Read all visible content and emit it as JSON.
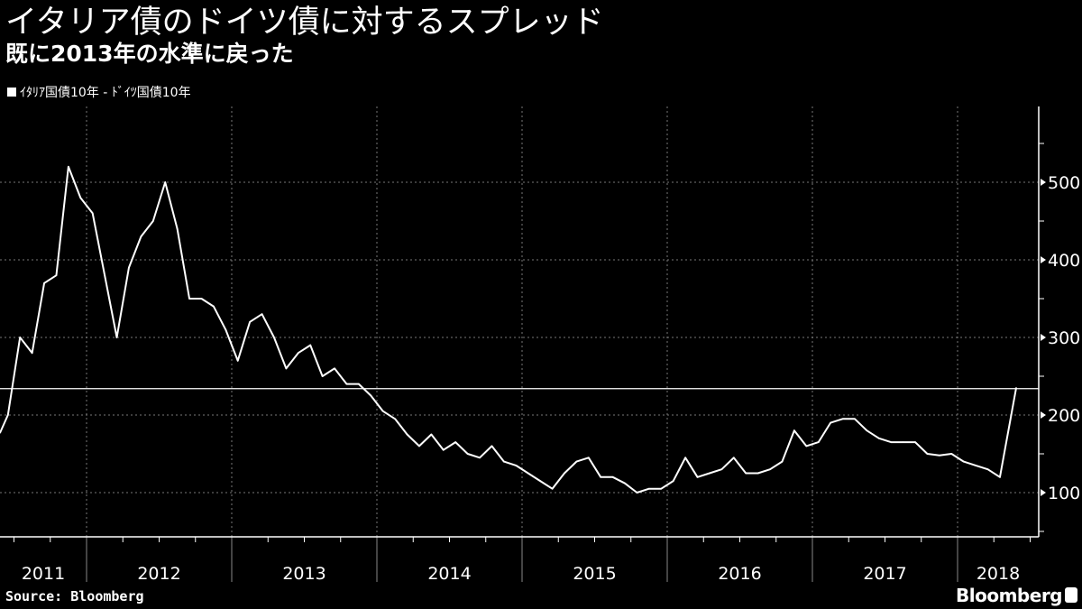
{
  "header": {
    "title": "イタリア債のドイツ債に対するスプレッド",
    "subtitle": "既に2013年の水準に戻った"
  },
  "footer": {
    "source": "Source: Bloomberg",
    "brand": "Bloomberg",
    "brand_icon": "bloomberg-chart-icon"
  },
  "colors": {
    "background": "#000000",
    "line": "#ffffff",
    "grid": "#888888"
  },
  "chart_data": {
    "type": "line",
    "title": "イタリア債のドイツ債に対するスプレッド",
    "subtitle": "既に2013年の水準に戻った",
    "legend": {
      "position": "top-left",
      "entries": [
        "ｲﾀﾘｱ国債10年 - ﾄﾞｲﾂ国債10年"
      ]
    },
    "y_axis": {
      "side": "right",
      "ylim": [
        50,
        580
      ],
      "ticks": [
        100,
        200,
        300,
        400,
        500
      ]
    },
    "x_axis": {
      "ticks": [
        "2011",
        "2012",
        "2013",
        "2014",
        "2015",
        "2016",
        "2017",
        "2018"
      ]
    },
    "grid": true,
    "reference_line": 234,
    "series": [
      {
        "name": "ｲﾀﾘｱ国債10年 - ﾄﾞｲﾂ国債10年",
        "x": [
          "2011-05",
          "2011-06",
          "2011-07",
          "2011-08",
          "2011-09",
          "2011-10",
          "2011-11",
          "2011-12",
          "2012-01",
          "2012-02",
          "2012-03",
          "2012-04",
          "2012-05",
          "2012-06",
          "2012-07",
          "2012-08",
          "2012-09",
          "2012-10",
          "2012-11",
          "2012-12",
          "2013-01",
          "2013-02",
          "2013-03",
          "2013-04",
          "2013-05",
          "2013-06",
          "2013-07",
          "2013-08",
          "2013-09",
          "2013-10",
          "2013-11",
          "2013-12",
          "2014-01",
          "2014-02",
          "2014-03",
          "2014-04",
          "2014-05",
          "2014-06",
          "2014-07",
          "2014-08",
          "2014-09",
          "2014-10",
          "2014-11",
          "2014-12",
          "2015-01",
          "2015-02",
          "2015-03",
          "2015-04",
          "2015-05",
          "2015-06",
          "2015-07",
          "2015-08",
          "2015-09",
          "2015-10",
          "2015-11",
          "2015-12",
          "2016-01",
          "2016-02",
          "2016-03",
          "2016-04",
          "2016-05",
          "2016-06",
          "2016-07",
          "2016-08",
          "2016-09",
          "2016-10",
          "2016-11",
          "2016-12",
          "2017-01",
          "2017-02",
          "2017-03",
          "2017-04",
          "2017-05",
          "2017-06",
          "2017-07",
          "2017-08",
          "2017-09",
          "2017-10",
          "2017-11",
          "2017-12",
          "2018-01",
          "2018-02",
          "2018-03",
          "2018-04",
          "2018-05"
        ],
        "values": [
          177,
          200,
          300,
          280,
          370,
          380,
          520,
          480,
          460,
          380,
          300,
          390,
          430,
          450,
          500,
          440,
          350,
          350,
          340,
          310,
          270,
          320,
          330,
          300,
          260,
          280,
          290,
          250,
          260,
          240,
          240,
          225,
          205,
          195,
          175,
          160,
          175,
          155,
          165,
          150,
          145,
          160,
          140,
          135,
          125,
          115,
          105,
          125,
          140,
          145,
          120,
          120,
          112,
          100,
          105,
          105,
          115,
          145,
          120,
          125,
          130,
          145,
          125,
          125,
          130,
          140,
          180,
          160,
          165,
          190,
          195,
          195,
          180,
          170,
          165,
          165,
          165,
          150,
          148,
          150,
          140,
          135,
          130,
          120,
          235
        ]
      }
    ]
  }
}
